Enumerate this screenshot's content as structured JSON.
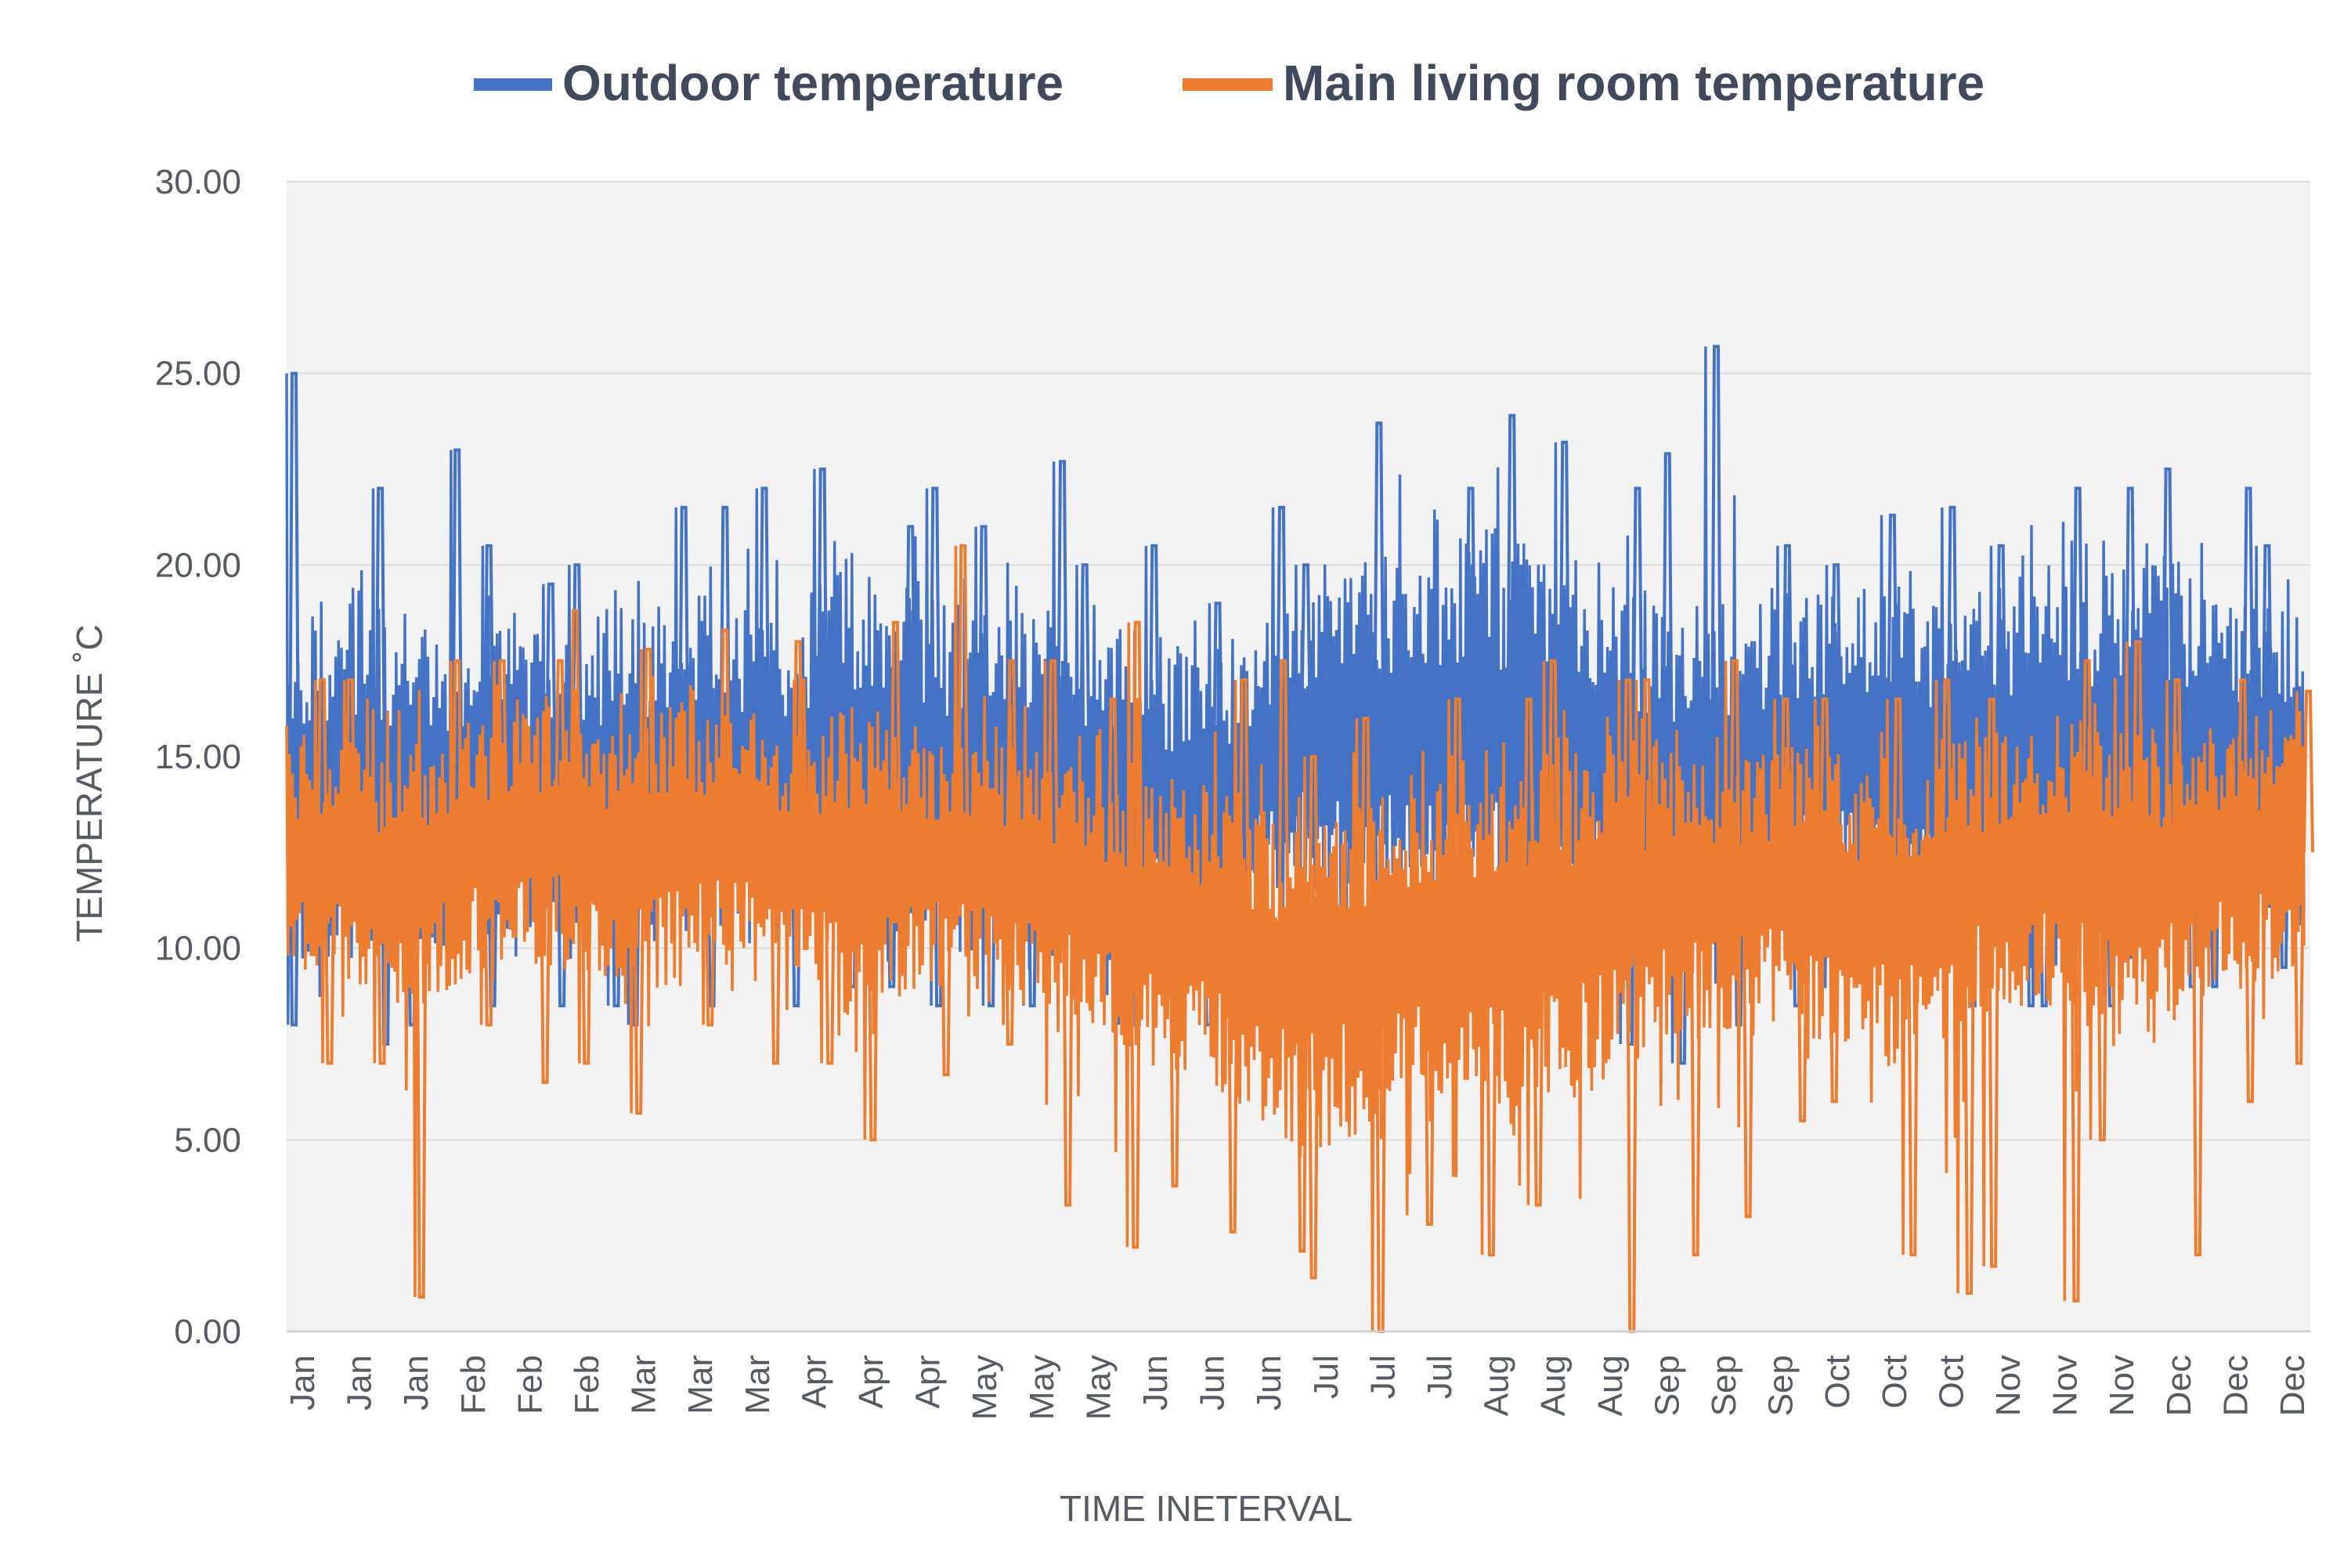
{
  "chart_data": {
    "type": "line",
    "title": "",
    "xlabel": "TIME INETERVAL",
    "ylabel": "TEMPERATURE ˚C",
    "ylim": [
      0,
      30
    ],
    "yticks": [
      "0.00",
      "5.00",
      "10.00",
      "15.00",
      "20.00",
      "25.00",
      "30.00"
    ],
    "grid": true,
    "legend_position": "top",
    "x_tick_labels": [
      "Jan",
      "Jan",
      "Jan",
      "Feb",
      "Feb",
      "Feb",
      "Mar",
      "Mar",
      "Mar",
      "Apr",
      "Apr",
      "Apr",
      "May",
      "May",
      "May",
      "Jun",
      "Jun",
      "Jun",
      "Jul",
      "Jul",
      "Jul",
      "Aug",
      "Aug",
      "Aug",
      "Sep",
      "Sep",
      "Sep",
      "Oct",
      "Oct",
      "Oct",
      "Nov",
      "Nov",
      "Nov",
      "Dec",
      "Dec",
      "Dec"
    ],
    "series": [
      {
        "name": "Outdoor temperature",
        "color": "#4472c4",
        "band_low": [
          9.5,
          9.0,
          9.5,
          10.0,
          10.5,
          10.5,
          10.0,
          10.0,
          10.0,
          10.5,
          10.5,
          10.5,
          10.0,
          10.0,
          9.5,
          9.0,
          9.5,
          10.5,
          11.5,
          11.0,
          10.5,
          10.0,
          10.0,
          10.0,
          9.5,
          10.0,
          10.0,
          10.5,
          10.5,
          10.0,
          10.0,
          10.0,
          10.0,
          10.5,
          10.5,
          10.5
        ],
        "band_high": [
          18.5,
          19.5,
          19.0,
          18.0,
          18.5,
          18.0,
          19.0,
          19.5,
          19.5,
          19.0,
          20.0,
          19.5,
          19.0,
          19.5,
          19.5,
          18.5,
          18.0,
          18.0,
          19.5,
          20.5,
          20.5,
          21.0,
          21.0,
          20.5,
          19.5,
          19.0,
          19.0,
          19.5,
          19.5,
          19.5,
          19.5,
          20.0,
          20.0,
          20.5,
          20.0,
          19.0
        ],
        "peaks": [
          25.0,
          22.0,
          23.0,
          20.5,
          19.5,
          20.0,
          21.5,
          21.5,
          22.0,
          22.5,
          21.0,
          22.0,
          21.0,
          22.7,
          20.0,
          20.5,
          19.0,
          21.5,
          20.0,
          23.7,
          22.0,
          23.9,
          23.2,
          22.0,
          22.9,
          25.7,
          20.5,
          20.0,
          21.3,
          21.5,
          20.5,
          22.0,
          22.0,
          22.5,
          22.0,
          20.5
        ],
        "troughs": [
          8.0,
          7.5,
          8.0,
          8.5,
          8.5,
          8.5,
          8.0,
          8.5,
          8.5,
          9.0,
          9.0,
          8.5,
          8.5,
          8.5,
          8.0,
          8.0,
          8.0,
          9.0,
          10.0,
          9.5,
          9.0,
          8.5,
          8.0,
          7.5,
          7.0,
          8.0,
          8.5,
          9.0,
          9.0,
          8.5,
          8.5,
          8.5,
          8.5,
          9.0,
          9.0,
          9.5
        ]
      },
      {
        "name": "Main living room temperature",
        "color": "#ed7d31",
        "band_low": [
          9.0,
          9.0,
          7.5,
          9.0,
          9.5,
          9.5,
          8.5,
          9.0,
          9.5,
          9.5,
          8.0,
          8.5,
          9.0,
          8.5,
          8.0,
          7.0,
          6.5,
          6.0,
          4.5,
          5.0,
          5.5,
          5.5,
          5.0,
          6.0,
          7.0,
          7.5,
          8.0,
          8.0,
          6.5,
          7.0,
          8.0,
          8.5,
          8.0,
          7.0,
          8.5,
          9.0
        ],
        "band_high": [
          15.5,
          16.0,
          15.5,
          16.0,
          16.5,
          16.5,
          16.0,
          16.5,
          16.5,
          15.5,
          16.5,
          16.0,
          15.5,
          15.5,
          15.0,
          14.5,
          14.5,
          14.0,
          13.5,
          14.0,
          14.5,
          15.0,
          15.5,
          15.5,
          15.5,
          15.0,
          15.0,
          15.5,
          15.0,
          15.0,
          15.5,
          16.0,
          16.0,
          16.0,
          16.0,
          16.0
        ],
        "peaks": [
          17.0,
          17.0,
          17.5,
          17.5,
          17.5,
          18.8,
          17.8,
          18.3,
          18.0,
          17.0,
          18.5,
          20.5,
          17.5,
          17.5,
          16.5,
          18.5,
          17.0,
          17.5,
          15.0,
          16.0,
          16.5,
          16.5,
          17.5,
          17.0,
          17.0,
          17.5,
          16.5,
          16.5,
          16.5,
          17.0,
          16.5,
          17.5,
          18.0,
          17.0,
          17.0,
          16.7
        ],
        "troughs": [
          7.0,
          7.0,
          0.9,
          8.0,
          6.5,
          7.0,
          5.7,
          8.0,
          7.0,
          7.0,
          5.0,
          6.7,
          7.5,
          3.3,
          2.2,
          3.8,
          2.6,
          2.1,
          1.4,
          0.0,
          2.8,
          2.0,
          3.3,
          0.0,
          2.0,
          3.0,
          5.5,
          6.0,
          2.0,
          1.0,
          1.7,
          0.8,
          5.0,
          2.0,
          6.0,
          7.0
        ]
      }
    ]
  }
}
